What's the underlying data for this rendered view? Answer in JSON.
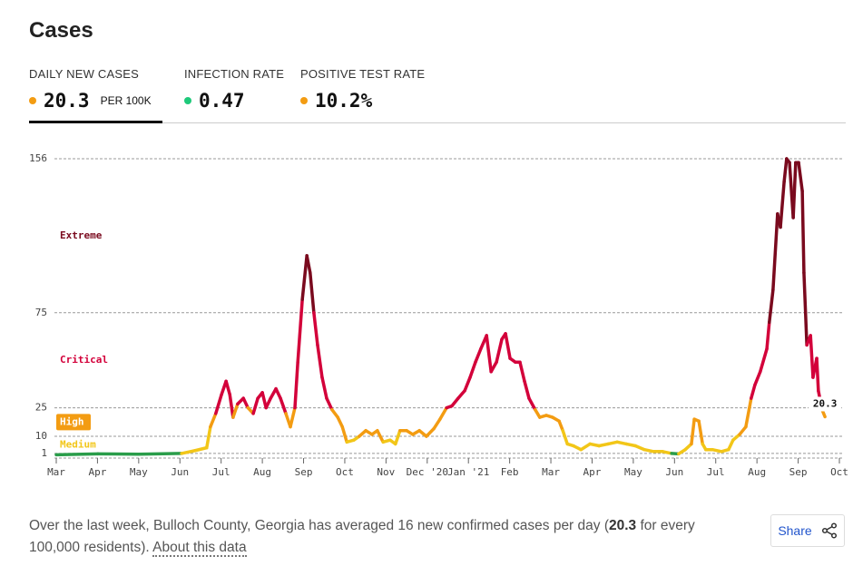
{
  "header": {
    "title": "Cases"
  },
  "tabs": [
    {
      "label": "DAILY NEW CASES",
      "value": "20.3",
      "unit": "PER 100K",
      "dot": "#f39c12"
    },
    {
      "label": "INFECTION RATE",
      "value": "0.47",
      "dot": "#1ec97a"
    },
    {
      "label": "POSITIVE TEST RATE",
      "value": "10.2%",
      "dot": "#f39c12"
    }
  ],
  "chart_data": {
    "type": "line",
    "x": [
      0,
      1.01,
      2.0,
      3.04,
      3.37,
      3.65,
      3.74,
      3.87,
      4.01,
      4.12,
      4.21,
      4.29,
      4.4,
      4.54,
      4.65,
      4.78,
      4.89,
      5.0,
      5.09,
      5.2,
      5.33,
      5.44,
      5.57,
      5.68,
      5.79,
      5.86,
      5.97,
      6.08,
      6.16,
      6.25,
      6.34,
      6.45,
      6.56,
      6.69,
      6.83,
      6.94,
      7.05,
      7.22,
      7.35,
      7.51,
      7.66,
      7.79,
      7.93,
      8.1,
      8.23,
      8.34,
      8.5,
      8.65,
      8.81,
      8.98,
      9.16,
      9.31,
      9.47,
      9.6,
      9.75,
      9.91,
      10.04,
      10.17,
      10.3,
      10.44,
      10.55,
      10.68,
      10.81,
      10.9,
      11.01,
      11.14,
      11.25,
      11.36,
      11.47,
      11.62,
      11.73,
      11.89,
      12.04,
      12.2,
      12.29,
      12.4,
      12.55,
      12.73,
      12.95,
      13.17,
      13.39,
      13.61,
      13.83,
      14.05,
      14.27,
      14.49,
      14.71,
      14.93,
      15.1,
      15.26,
      15.41,
      15.48,
      15.59,
      15.68,
      15.76,
      15.92,
      16.14,
      16.31,
      16.42,
      16.58,
      16.73,
      16.86,
      16.95,
      17.08,
      17.24,
      17.3,
      17.39,
      17.5,
      17.57,
      17.66,
      17.72,
      17.79,
      17.88,
      17.94,
      18.01,
      18.1,
      18.14,
      18.21,
      18.3,
      18.36,
      18.45,
      18.49,
      18.58,
      18.65
    ],
    "values": [
      0.3,
      0.8,
      0.6,
      1,
      2.5,
      4,
      15,
      22,
      32,
      39,
      32,
      20,
      27,
      30,
      25,
      22,
      30,
      33,
      25,
      30,
      35,
      30,
      22,
      15,
      25,
      49,
      82,
      105,
      96,
      75,
      58,
      41,
      30,
      24,
      20,
      15,
      7,
      8,
      10,
      13,
      11,
      13,
      7,
      8,
      6,
      13,
      13,
      11,
      13,
      10,
      14,
      19,
      25,
      26,
      30,
      34,
      41,
      49,
      56,
      63,
      44,
      49,
      61,
      64,
      51,
      49,
      49,
      39,
      30,
      24,
      20,
      21,
      20,
      18,
      13,
      6,
      5,
      3,
      6,
      5,
      6,
      7,
      6,
      5,
      3,
      2,
      2,
      1,
      0.8,
      3,
      6,
      19,
      18,
      6,
      3,
      3,
      2,
      3,
      8,
      11,
      15,
      30,
      37,
      44,
      56,
      70,
      87,
      127,
      120,
      144,
      156,
      154,
      125,
      154,
      154,
      139,
      96,
      58,
      63,
      41,
      51,
      34,
      24,
      20.3
    ],
    "xlim": [
      0,
      19
    ],
    "xticks": [
      {
        "value": 0,
        "label": "Mar"
      },
      {
        "value": 1,
        "label": "Apr"
      },
      {
        "value": 2,
        "label": "May"
      },
      {
        "value": 3,
        "label": "Jun"
      },
      {
        "value": 4,
        "label": "Jul"
      },
      {
        "value": 5,
        "label": "Aug"
      },
      {
        "value": 6,
        "label": "Sep"
      },
      {
        "value": 7,
        "label": "Oct"
      },
      {
        "value": 8,
        "label": "Nov"
      },
      {
        "value": 9,
        "label": "Dec '20"
      },
      {
        "value": 10,
        "label": "Jan '21"
      },
      {
        "value": 11,
        "label": "Feb"
      },
      {
        "value": 12,
        "label": "Mar"
      },
      {
        "value": 13,
        "label": "Apr"
      },
      {
        "value": 14,
        "label": "May"
      },
      {
        "value": 15,
        "label": "Jun"
      },
      {
        "value": 16,
        "label": "Jul"
      },
      {
        "value": 17,
        "label": "Aug"
      },
      {
        "value": 18,
        "label": "Sep"
      },
      {
        "value": 19,
        "label": "Oct"
      }
    ],
    "ylim": [
      0,
      156
    ],
    "yticks": [
      1,
      10,
      25,
      75,
      156
    ],
    "grid": true,
    "low_color": "#2a9d4a",
    "zones": [
      {
        "name": "Medium",
        "min": 1,
        "color": "#f2c618"
      },
      {
        "name": "High",
        "min": 10,
        "color": "#f39c12"
      },
      {
        "name": "Critical",
        "min": 25,
        "color": "#d3003a"
      },
      {
        "name": "Extreme",
        "min": 75,
        "color": "#7a0a1e"
      }
    ]
  },
  "footer": {
    "text_before": "Over the last week, Bulloch County, Georgia has averaged 16 new confirmed cases per day (",
    "bold": "20.3",
    "text_after": " for every 100,000 residents). ",
    "link": "About this data"
  },
  "share": "Share"
}
